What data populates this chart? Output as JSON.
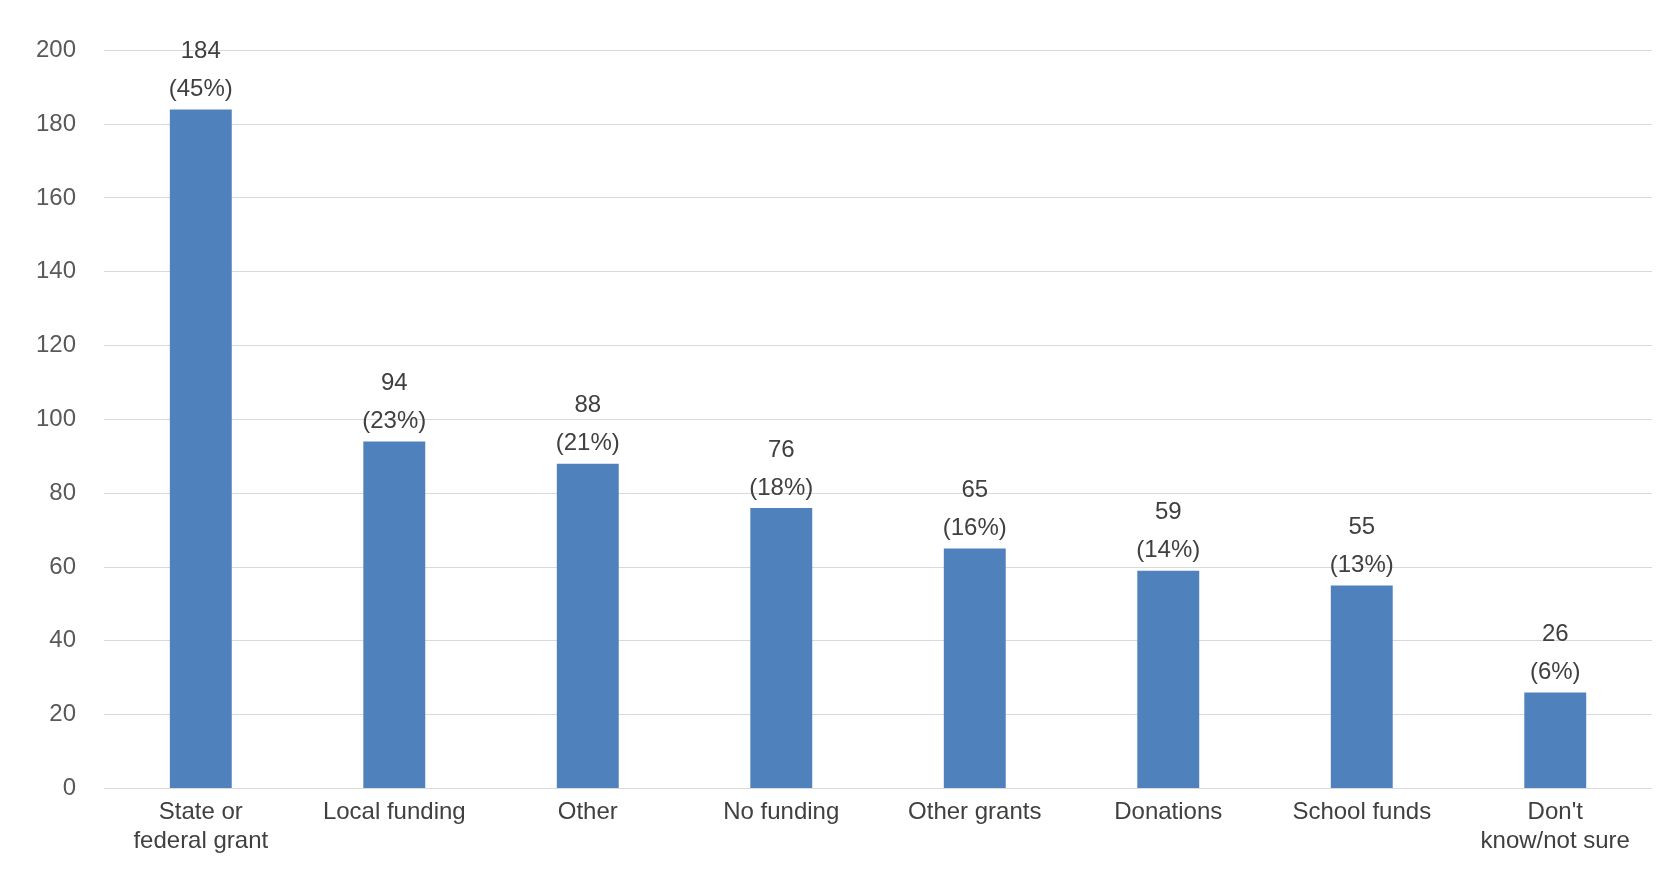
{
  "chart_data": {
    "type": "bar",
    "categories": [
      "State or federal grant",
      "Local funding",
      "Other",
      "No funding",
      "Other grants",
      "Donations",
      "School funds",
      "Don't know/not sure"
    ],
    "values": [
      184,
      94,
      88,
      76,
      65,
      59,
      55,
      26
    ],
    "value_labels": [
      "184\n(45%)",
      "94\n(23%)",
      "88\n(21%)",
      "76\n(18%)",
      "65\n(16%)",
      "59\n(14%)",
      "55\n(13%)",
      "26\n(6%)"
    ],
    "color": "#4f81bd",
    "ylim": [
      0,
      200
    ],
    "yticks": [
      0,
      20,
      40,
      60,
      80,
      100,
      120,
      140,
      160,
      180,
      200
    ],
    "grid": "y",
    "legend": false
  }
}
